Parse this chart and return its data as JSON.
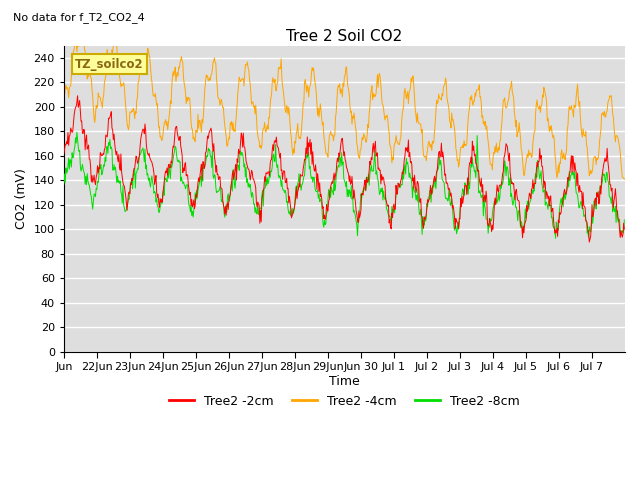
{
  "title": "Tree 2 Soil CO2",
  "subtitle": "No data for f_T2_CO2_4",
  "ylabel": "CO2 (mV)",
  "xlabel": "Time",
  "ylim": [
    0,
    250
  ],
  "yticks": [
    0,
    20,
    40,
    60,
    80,
    100,
    120,
    140,
    160,
    180,
    200,
    220,
    240
  ],
  "background_color": "#dedede",
  "legend_label_2cm": "Tree2 -2cm",
  "legend_label_4cm": "Tree2 -4cm",
  "legend_label_8cm": "Tree2 -8cm",
  "color_2cm": "#ff0000",
  "color_4cm": "#ffa500",
  "color_8cm": "#00dd00",
  "inset_label": "TZ_soilco2",
  "tick_labels": [
    "Jun",
    "22Jun",
    "23Jun",
    "24Jun",
    "25Jun",
    "26Jun",
    "27Jun",
    "28Jun",
    "29Jun",
    "Jun 30",
    "Jul 1",
    "Jul 2",
    "Jul 3",
    "Jul 4",
    "Jul 5",
    "Jul 6",
    "Jul 7"
  ]
}
